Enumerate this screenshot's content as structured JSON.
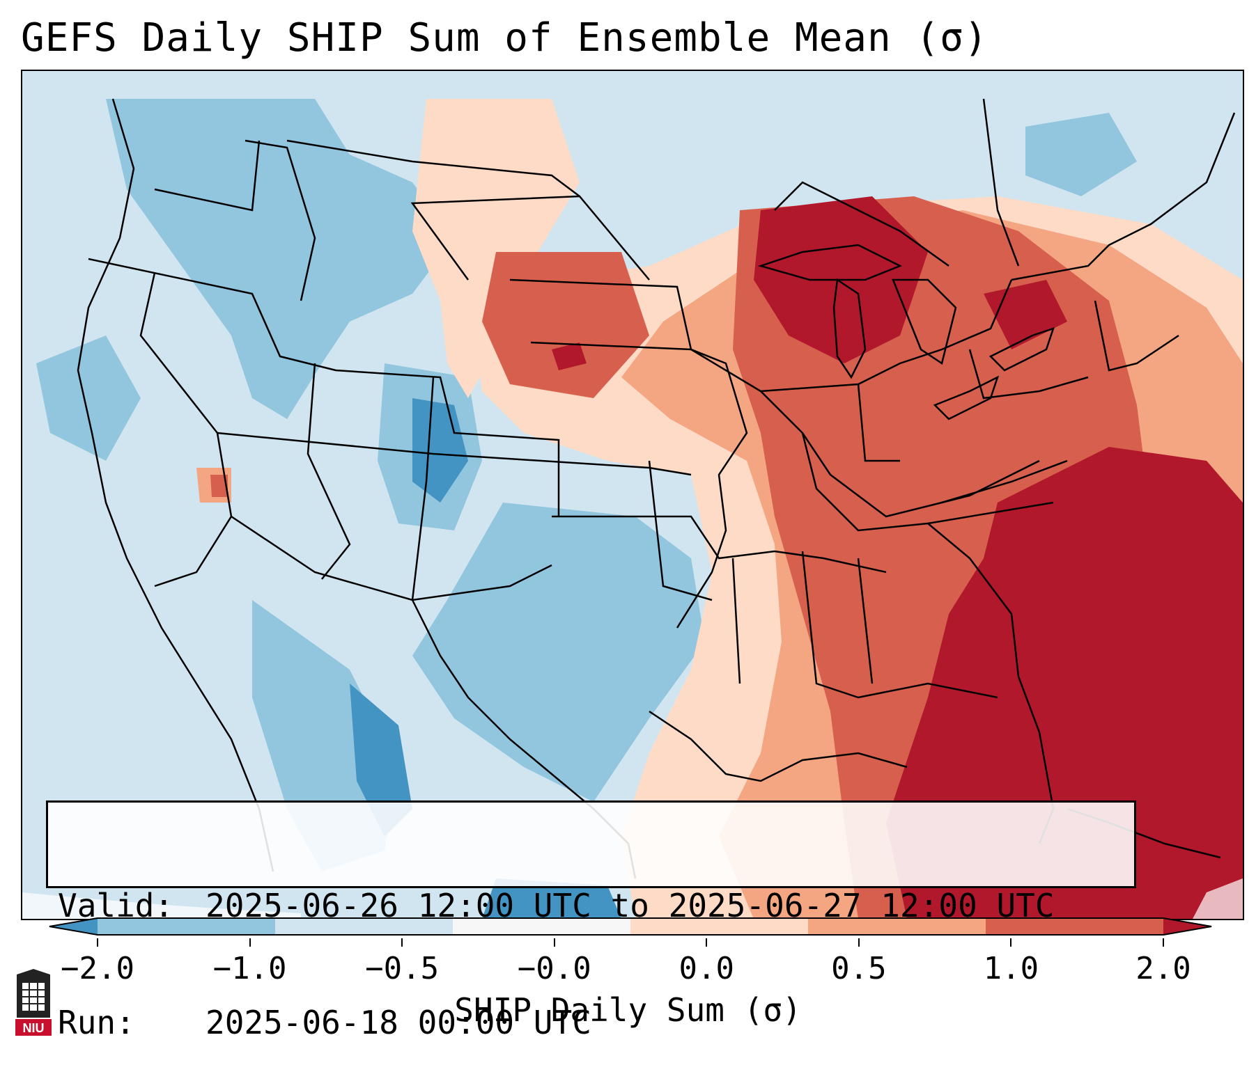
{
  "title": "GEFS Daily SHIP Sum of Ensemble Mean (σ)",
  "info": {
    "valid_label": "Valid:",
    "valid_value": "2025-06-26 12:00 UTC to 2025-06-27 12:00 UTC",
    "run_label": "Run:",
    "run_value": "2025-06-18 00:00 UTC"
  },
  "colorbar": {
    "label": "SHIP Daily Sum (σ)",
    "tick_labels": [
      "−2.0",
      "−1.0",
      "−0.5",
      "−0.0",
      "0.0",
      "0.5",
      "1.0",
      "2.0"
    ],
    "colors": [
      "#4393c3",
      "#92c5de",
      "#d1e5f0",
      "#f7f7f7",
      "#fddbc7",
      "#f4a582",
      "#d6604d",
      "#b2182b"
    ],
    "extend": "both"
  },
  "logo": {
    "text": "NIU",
    "color": "#c8102e"
  }
}
